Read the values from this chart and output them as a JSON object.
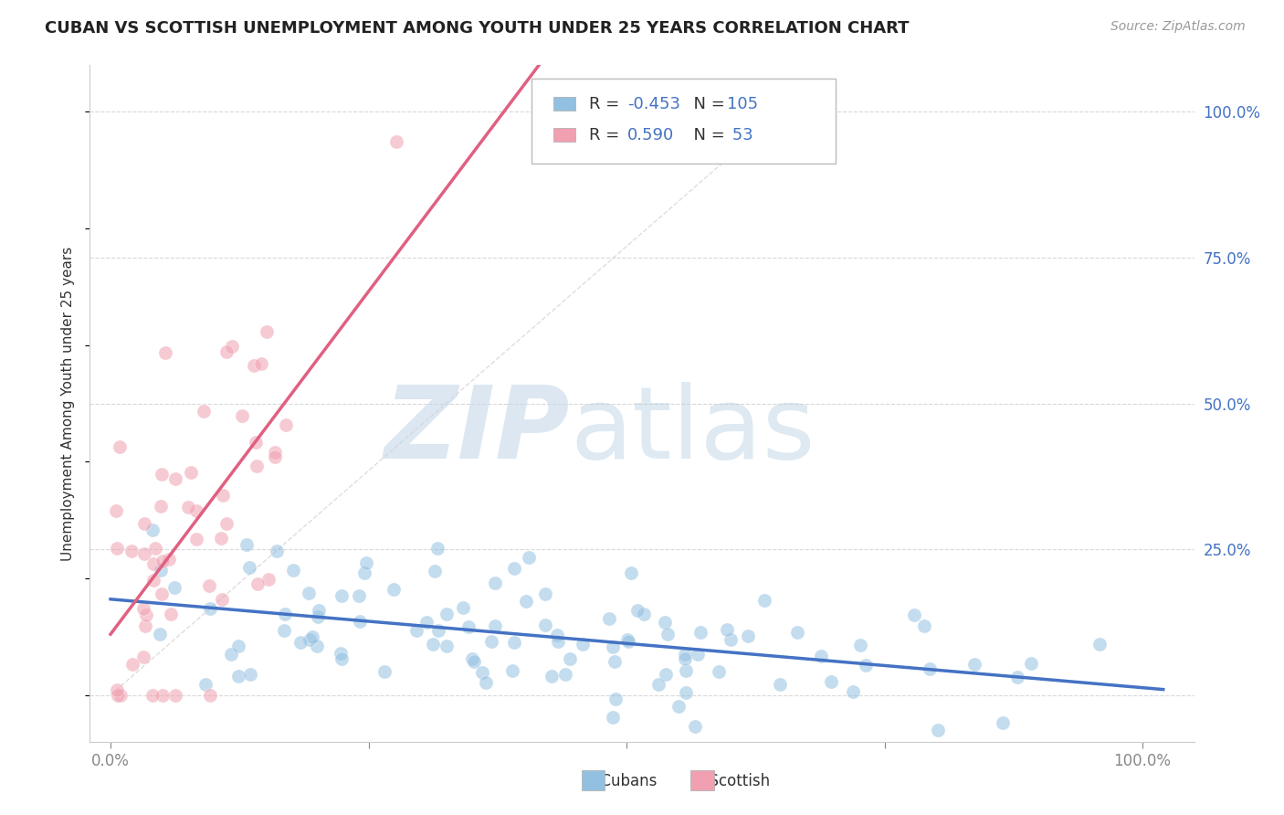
{
  "title": "CUBAN VS SCOTTISH UNEMPLOYMENT AMONG YOUTH UNDER 25 YEARS CORRELATION CHART",
  "source": "Source: ZipAtlas.com",
  "ylabel": "Unemployment Among Youth under 25 years",
  "cubans_R": -0.453,
  "cubans_N": 105,
  "scottish_R": 0.59,
  "scottish_N": 53,
  "color_cubans": "#92c0e0",
  "color_scottish": "#f0a0b0",
  "color_cubans_line": "#4472c4",
  "color_scottish_line": "#e06080",
  "color_diag_line": "#d0d0d0",
  "watermark_zip_color": "#c5d8e8",
  "watermark_atlas_color": "#b8cfe0",
  "right_yticks": [
    0.0,
    0.25,
    0.5,
    0.75,
    1.0
  ],
  "right_yticklabels": [
    "",
    "25.0%",
    "50.0%",
    "75.0%",
    "100.0%"
  ],
  "ylim": [
    -0.08,
    1.08
  ],
  "xlim": [
    -0.02,
    1.05
  ],
  "grid_color": "#d8d8d8",
  "background_color": "#ffffff",
  "title_fontsize": 13,
  "source_fontsize": 10,
  "legend_blue_color": "#4472c4",
  "legend_pink_color": "#e06080"
}
